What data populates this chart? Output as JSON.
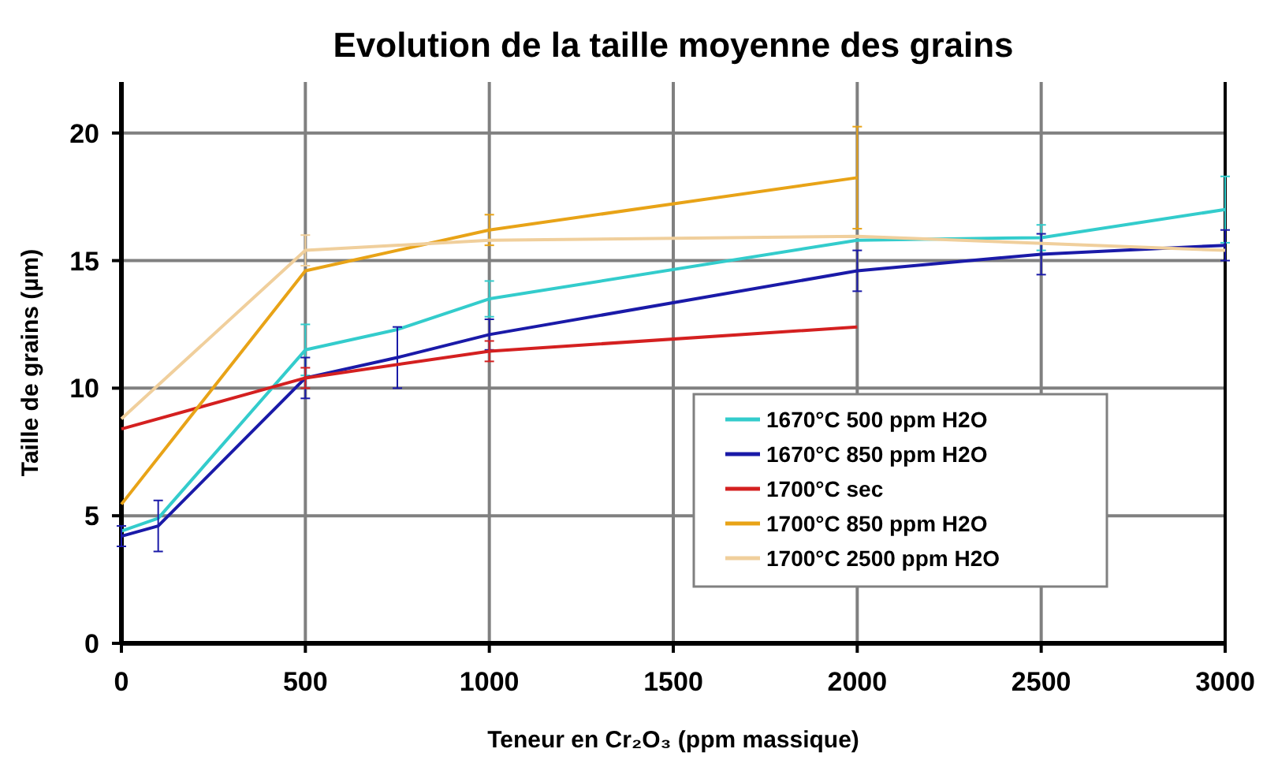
{
  "chart_data": {
    "type": "line",
    "title": "Evolution de la taille moyenne des grains",
    "xlabel": "Teneur en Cr₂O₃ (ppm massique)",
    "ylabel": "Taille de grains (µm)",
    "xlim": [
      0,
      3000
    ],
    "ylim": [
      0,
      22
    ],
    "xticks": [
      0,
      500,
      1000,
      1500,
      2000,
      2500,
      3000
    ],
    "yticks": [
      0,
      5,
      10,
      15,
      20
    ],
    "grid": true,
    "legend": "bottom right",
    "series": [
      {
        "name": "1670°C 500 ppm H2O",
        "color": "#33cccc",
        "x": [
          0,
          100,
          500,
          750,
          1000,
          2000,
          2500,
          3000
        ],
        "values": [
          4.4,
          4.9,
          11.5,
          12.3,
          13.5,
          15.8,
          15.9,
          17.0
        ],
        "errors": [
          null,
          null,
          1.0,
          null,
          0.7,
          null,
          0.5,
          1.3
        ]
      },
      {
        "name": "1670°C 850 ppm H2O",
        "color": "#1a1aa8",
        "x": [
          0,
          100,
          500,
          750,
          1000,
          2000,
          2500,
          3000
        ],
        "values": [
          4.2,
          4.6,
          10.4,
          11.2,
          12.1,
          14.6,
          15.25,
          15.6
        ],
        "errors": [
          0.4,
          1.0,
          0.8,
          1.2,
          0.6,
          0.8,
          0.8,
          0.6
        ]
      },
      {
        "name": "1700°C sec",
        "color": "#d42020",
        "x": [
          0,
          500,
          1000,
          2000
        ],
        "values": [
          8.4,
          10.4,
          11.45,
          12.4
        ],
        "errors": [
          null,
          0.4,
          0.4,
          null
        ]
      },
      {
        "name": "1700°C 850 ppm H2O",
        "color": "#e8a317",
        "x": [
          0,
          500,
          1000,
          2000
        ],
        "values": [
          5.45,
          14.6,
          16.2,
          18.25
        ],
        "errors": [
          null,
          null,
          0.6,
          2.0
        ]
      },
      {
        "name": "1700°C 2500 ppm H2O",
        "color": "#f0cf9c",
        "x": [
          0,
          500,
          1000,
          2000,
          3000
        ],
        "values": [
          8.8,
          15.4,
          15.8,
          15.95,
          15.4
        ],
        "errors": [
          null,
          0.6,
          null,
          null,
          null
        ]
      }
    ]
  }
}
